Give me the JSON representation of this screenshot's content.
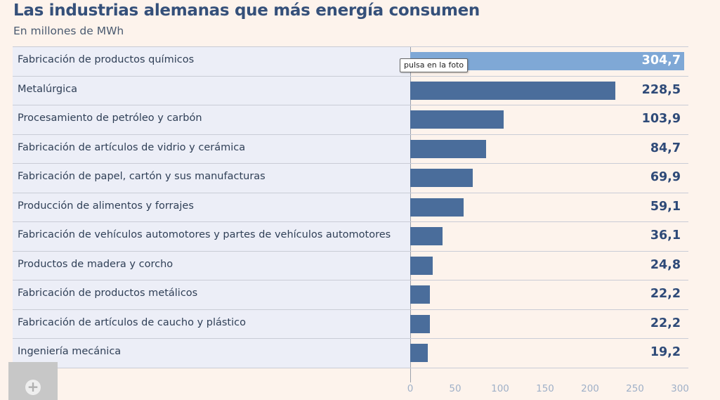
{
  "chart_data": {
    "type": "bar",
    "orientation": "horizontal",
    "title": "Las industrias alemanas que más energía consumen",
    "subtitle": "En millones de MWh",
    "categories": [
      "Fabricación de productos químicos",
      "Metalúrgica",
      "Procesamiento de petróleo y carbón",
      "Fabricación de artículos de vidrio y cerámica",
      "Fabricación de papel, cartón y sus manufacturas",
      "Producción de alimentos y forrajes",
      "Fabricación de vehículos automotores y partes de vehículos automotores",
      "Productos de madera y corcho",
      "Fabricación de productos metálicos",
      "Fabricación de artículos de caucho y plástico",
      "Ingeniería mecánica"
    ],
    "values": [
      304.7,
      228.5,
      103.9,
      84.7,
      69.9,
      59.1,
      36.1,
      24.8,
      22.2,
      22.2,
      19.2
    ],
    "value_labels": [
      "304,7",
      "228,5",
      "103,9",
      "84,7",
      "69,9",
      "59,1",
      "36,1",
      "24,8",
      "22,2",
      "22,2",
      "19,2"
    ],
    "xlim": [
      0,
      300
    ],
    "xticks": [
      "0",
      "50",
      "100",
      "150",
      "200",
      "250",
      "300"
    ],
    "highlighted_index": 0,
    "grid": false
  },
  "tooltip": "pulsa en la foto",
  "colors": {
    "bar": "#4a6d9b",
    "bar_highlight": "#7fa8d6",
    "background": "#fdf3ec",
    "label_panel": "#eceef7"
  },
  "overlay": {
    "icon": "plus-icon"
  }
}
